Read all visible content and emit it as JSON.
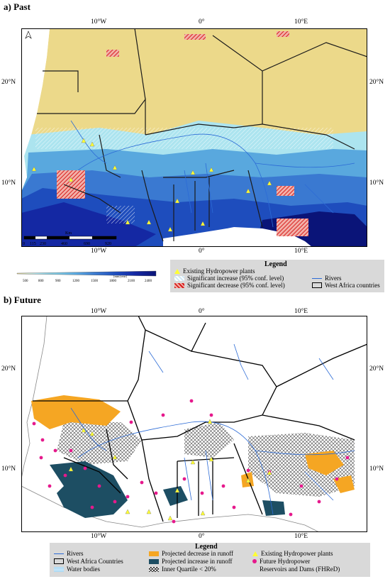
{
  "panel_a": {
    "title": "a) Past",
    "lon_ticks": [
      "10°W",
      "0°",
      "10°E"
    ],
    "lat_ticks": [
      "20°N",
      "10°N"
    ],
    "scalebar": {
      "unit": "Km",
      "labels": [
        "0",
        "115",
        "230",
        "460",
        "690",
        "920"
      ]
    },
    "colorbar": {
      "unit": "[mm/year]",
      "labels": [
        "500",
        "800",
        "900",
        "1200",
        "1500",
        "1800",
        "2100",
        "2400"
      ],
      "colors": [
        "#f2dd8f",
        "#ace4ef",
        "#82cfe9",
        "#59a8de",
        "#3a79d1",
        "#1e4dbd",
        "#1428a3",
        "#0a1478"
      ]
    },
    "legend": {
      "title": "Legend",
      "items": [
        "Existing Hydropower plants",
        "Significant increase (95% conf. level)",
        "Significant decrease (95% conf. level)",
        "Rivers",
        "West Africa countries"
      ]
    }
  },
  "panel_b": {
    "title": "b) Future",
    "lon_ticks": [
      "10°W",
      "0°",
      "10°E"
    ],
    "lat_ticks": [
      "20°N",
      "10°N"
    ],
    "legend": {
      "title": "Legend",
      "items": [
        "Rivers",
        "West Africa Countries",
        "Water bodies",
        "Projected decrease in runoff",
        "Projected increase in runoff",
        "Inner Quartile < 20%",
        "Existing Hydropower plants",
        "Future Hydropower",
        "Reservoirs and Dams (FHReD)"
      ]
    }
  },
  "colors": {
    "sahara": "#ecd98a",
    "runoff_decrease": "#f5a623",
    "runoff_increase": "#1d4e63",
    "hydropower": "#ffff33",
    "fhred": "#e6198c",
    "river": "#2c6bd6",
    "sig_decrease": "#d81e1e"
  }
}
